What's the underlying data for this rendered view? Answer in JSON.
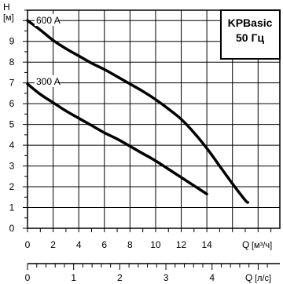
{
  "chart_data": {
    "type": "line",
    "title": "KPBasic",
    "subtitle": "50 Гц",
    "ylabel": "H",
    "yunit": "[м]",
    "xlabel": "Q",
    "xunit": "[м³/ч]",
    "x2label": "Q",
    "x2unit": "[л/с]",
    "xlim": [
      0,
      19.7
    ],
    "ylim": [
      0,
      10.5
    ],
    "x2lim": [
      0,
      5.47
    ],
    "xticks": [
      "0",
      "2",
      "4",
      "6",
      "8",
      "10",
      "12",
      "14"
    ],
    "yticks": [
      "0",
      "1",
      "2",
      "3",
      "4",
      "5",
      "6",
      "7",
      "8",
      "9"
    ],
    "x2ticks": [
      "0",
      "1",
      "2",
      "3",
      "4"
    ],
    "grid": true,
    "series": [
      {
        "name": "600 A",
        "x": [
          0,
          1,
          2,
          3,
          4,
          5,
          6,
          7,
          8,
          9,
          10,
          11,
          12,
          13,
          14,
          15,
          16,
          17,
          17.2
        ],
        "y": [
          10.0,
          9.55,
          9.05,
          8.65,
          8.3,
          7.95,
          7.65,
          7.3,
          6.95,
          6.6,
          6.2,
          5.75,
          5.25,
          4.6,
          3.85,
          3.0,
          2.15,
          1.35,
          1.25
        ]
      },
      {
        "name": "300 A",
        "x": [
          0,
          1,
          2,
          3,
          4,
          5,
          6,
          7,
          8,
          9,
          10,
          11,
          12,
          13,
          14
        ],
        "y": [
          6.95,
          6.45,
          6.05,
          5.65,
          5.3,
          4.95,
          4.6,
          4.3,
          3.95,
          3.6,
          3.25,
          2.85,
          2.45,
          2.05,
          1.65
        ]
      }
    ]
  }
}
